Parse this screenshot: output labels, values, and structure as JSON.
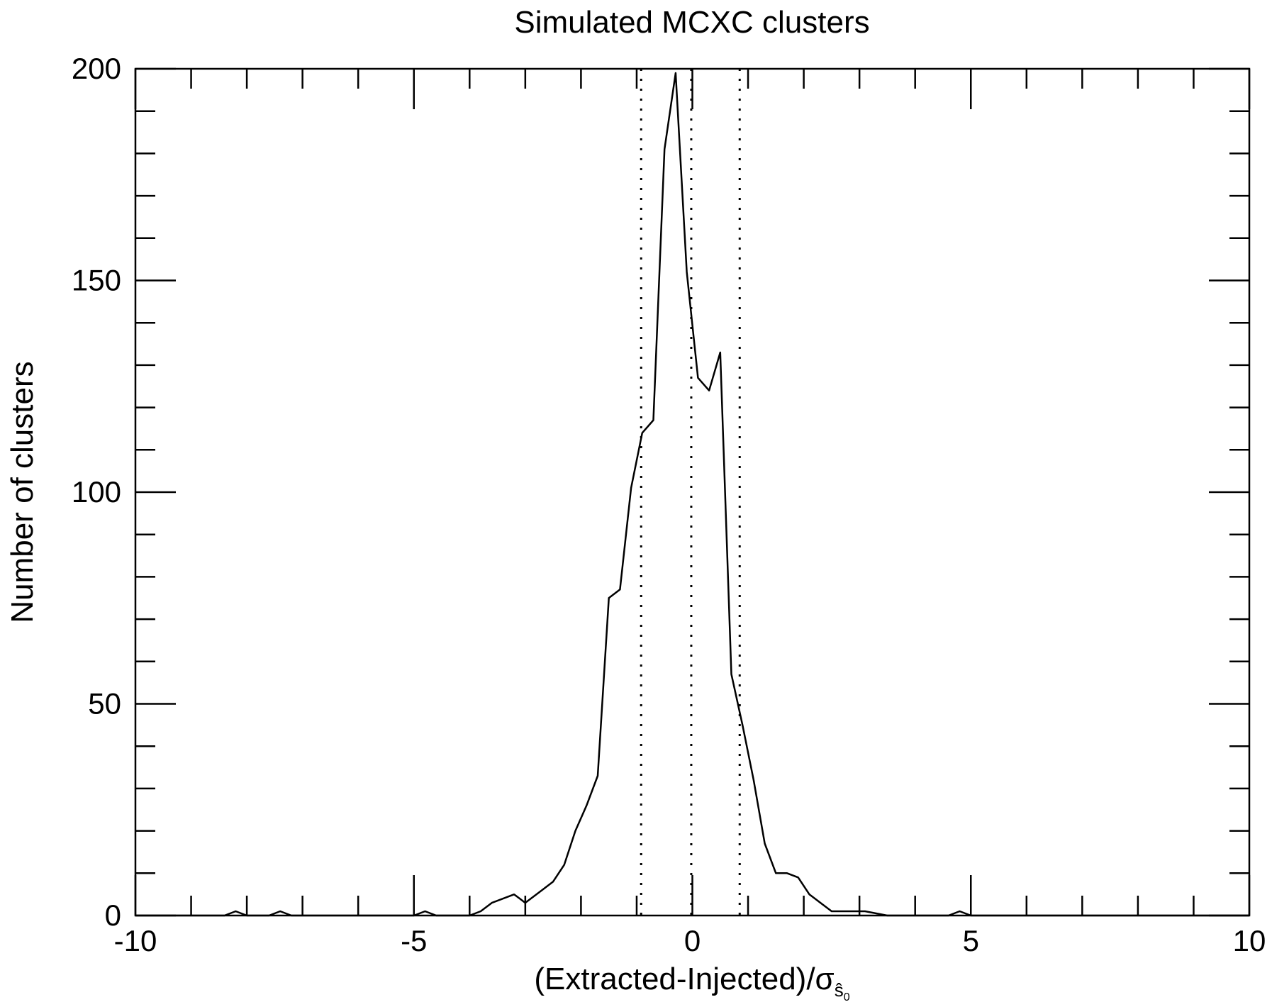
{
  "chart_data": {
    "type": "line",
    "title": "Simulated MCXC clusters",
    "xlabel": "(Extracted-Injected)/σ",
    "xlabel_subscript": "ŝ",
    "xlabel_subsubscript": "0",
    "ylabel": "Number of clusters",
    "xlim": [
      -10,
      10
    ],
    "ylim": [
      0,
      200
    ],
    "x_ticks": [
      -10,
      -5,
      0,
      5,
      10
    ],
    "x_tick_labels": [
      "-10",
      "-5",
      "0",
      "5",
      "10"
    ],
    "y_ticks": [
      0,
      50,
      100,
      150,
      200
    ],
    "y_tick_labels": [
      "0",
      "50",
      "100",
      "150",
      "200"
    ],
    "x_minor_step": 1,
    "y_minor_step": 10,
    "grid": false,
    "vertical_dotted_lines": [
      -0.92,
      -0.02,
      0.85
    ],
    "series": [
      {
        "x": [
          -10,
          -8.4,
          -8.2,
          -8.0,
          -7.6,
          -7.4,
          -7.2,
          -5.0,
          -4.8,
          -4.6,
          -4.0,
          -3.8,
          -3.6,
          -3.2,
          -3.1,
          -3.0,
          -2.9,
          -2.7,
          -2.5,
          -2.3,
          -2.1,
          -1.9,
          -1.7,
          -1.5,
          -1.3,
          -1.1,
          -0.9,
          -0.7,
          -0.5,
          -0.3,
          -0.1,
          0.1,
          0.3,
          0.5,
          0.7,
          0.9,
          1.1,
          1.3,
          1.5,
          1.7,
          1.9,
          2.1,
          2.3,
          2.5,
          2.7,
          2.9,
          3.1,
          3.5,
          4.6,
          4.8,
          5.0,
          10
        ],
        "y": [
          0,
          0,
          1,
          0,
          0,
          1,
          0,
          0,
          1,
          0,
          0,
          1,
          3,
          5,
          4,
          3,
          4,
          6,
          8,
          12,
          20,
          26,
          33,
          75,
          77,
          101,
          114,
          117,
          181,
          199,
          152,
          127,
          124,
          133,
          57,
          45,
          32,
          17,
          10,
          10,
          9,
          5,
          3,
          1,
          1,
          1,
          1,
          0,
          0,
          1,
          0,
          0
        ]
      }
    ]
  }
}
